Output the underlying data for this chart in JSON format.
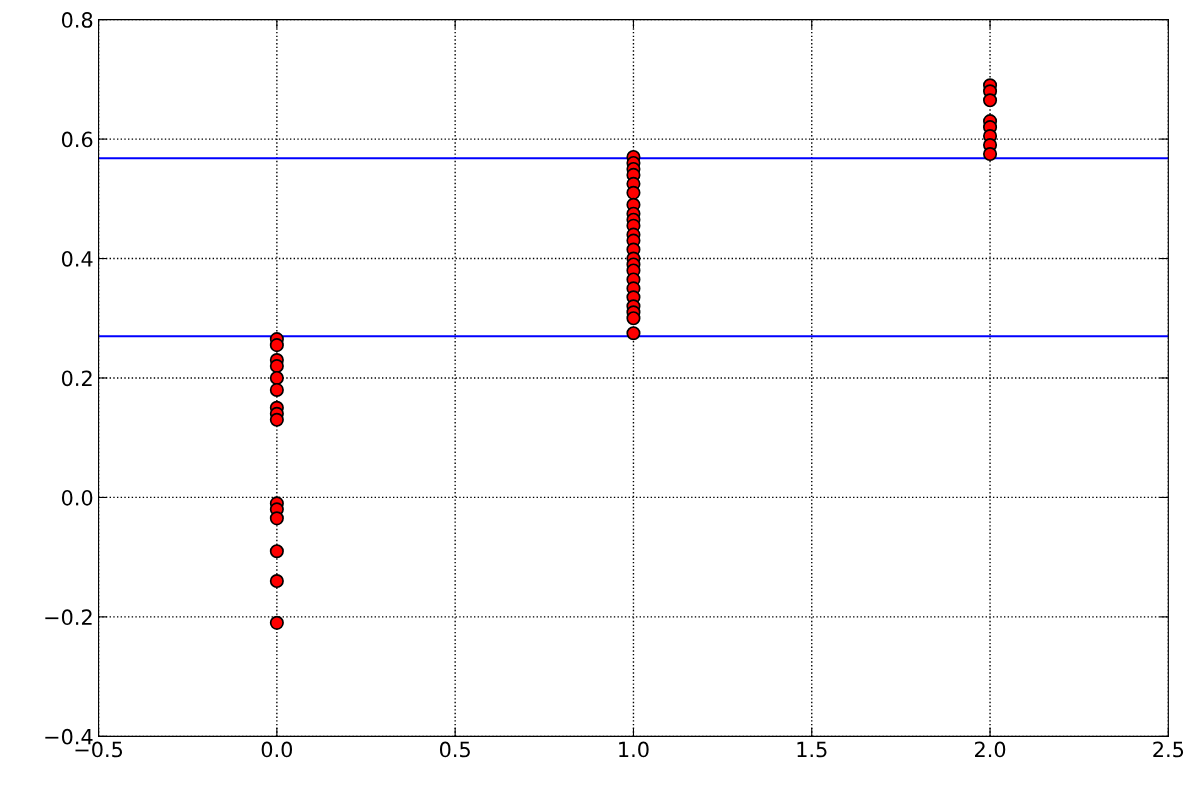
{
  "chart_data": {
    "type": "scatter",
    "xlim": [
      -0.5,
      2.5
    ],
    "xticks": [
      {
        "value": -0.5,
        "label": "−0.5"
      },
      {
        "value": 0.0,
        "label": "0.0"
      },
      {
        "value": 0.5,
        "label": "0.5"
      },
      {
        "value": 1.0,
        "label": "1.0"
      },
      {
        "value": 1.5,
        "label": "1.5"
      },
      {
        "value": 2.0,
        "label": "2.0"
      },
      {
        "value": 2.5,
        "label": "2.5"
      }
    ],
    "ylim": [
      -0.4,
      0.8
    ],
    "yticks": [
      {
        "value": -0.4,
        "label": "−0.4"
      },
      {
        "value": -0.2,
        "label": "−0.2"
      },
      {
        "value": 0.0,
        "label": "0.0"
      },
      {
        "value": 0.2,
        "label": "0.2"
      },
      {
        "value": 0.4,
        "label": "0.4"
      },
      {
        "value": 0.6,
        "label": "0.6"
      },
      {
        "value": 0.8,
        "label": "0.8"
      }
    ],
    "grid": true,
    "marker": "circle",
    "series": [
      {
        "color": "#ff0000",
        "x": [
          0,
          0,
          0,
          0,
          0,
          0,
          0,
          0,
          0,
          0,
          0,
          0,
          0,
          0,
          0,
          1,
          1,
          1,
          1,
          1,
          1,
          1,
          1,
          1,
          1,
          1,
          1,
          1,
          1,
          1,
          1,
          1,
          1,
          1,
          1,
          1,
          1,
          1,
          2,
          2,
          2,
          2,
          2,
          2,
          2,
          2
        ],
        "values": [
          0.265,
          0.255,
          0.23,
          0.22,
          0.2,
          0.18,
          0.15,
          0.14,
          0.13,
          -0.01,
          -0.02,
          -0.035,
          -0.09,
          -0.14,
          -0.21,
          0.57,
          0.56,
          0.55,
          0.54,
          0.525,
          0.51,
          0.49,
          0.475,
          0.465,
          0.455,
          0.44,
          0.43,
          0.415,
          0.4,
          0.39,
          0.38,
          0.365,
          0.35,
          0.335,
          0.32,
          0.31,
          0.3,
          0.275,
          0.69,
          0.68,
          0.665,
          0.63,
          0.62,
          0.605,
          0.59,
          0.575
        ]
      }
    ],
    "ref_lines": [
      {
        "axis": "y",
        "value": 0.568,
        "color": "#0000ff"
      },
      {
        "axis": "y",
        "value": 0.27,
        "color": "#0000ff"
      }
    ]
  }
}
